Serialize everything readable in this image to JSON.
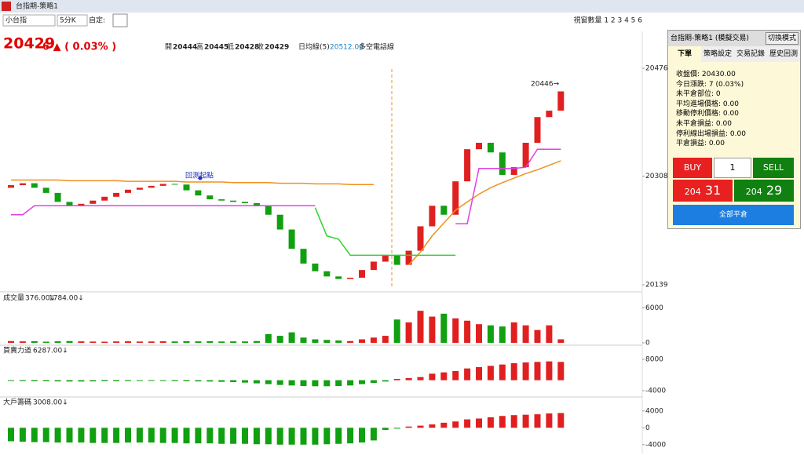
{
  "window": {
    "title": "台指期-策略1"
  },
  "toolbar": {
    "symbol": "小台指",
    "period": "5分K",
    "custom": "自定:",
    "view_count": "視窗數量 1 2 3 4 5 6"
  },
  "quote": {
    "price": "20429",
    "change": "6 ▲ ( 0.03% )",
    "open_label": "開",
    "open": 20444,
    "high_label": "高",
    "high": 20445,
    "low_label": "低",
    "low": 20428,
    "close_label": "收",
    "close": 20429,
    "ma_label": "日均線(5)",
    "ma_value": "20512.00",
    "line_label": "多空電話線"
  },
  "chart_data": {
    "type": "candlestick",
    "annotations": {
      "start": "回測起點",
      "last_high": "20446→"
    },
    "ylim": [
      20139,
      20476
    ],
    "yticks": [
      20139,
      20308,
      20476
    ],
    "open": [
      20290,
      20294,
      20297,
      20290,
      20282,
      20268,
      20262,
      20265,
      20270,
      20276,
      20282,
      20287,
      20290,
      20293,
      20296,
      20295,
      20286,
      20278,
      20272,
      20270,
      20268,
      20266,
      20262,
      20248,
      20225,
      20195,
      20172,
      20160,
      20152,
      20148,
      20150,
      20162,
      20175,
      20185,
      20170,
      20192,
      20230,
      20262,
      20248,
      20300,
      20350,
      20360,
      20345,
      20310,
      20322,
      20360,
      20400,
      20410
    ],
    "close": [
      20294,
      20297,
      20290,
      20282,
      20268,
      20262,
      20265,
      20270,
      20276,
      20282,
      20287,
      20290,
      20293,
      20296,
      20295,
      20286,
      20278,
      20272,
      20270,
      20268,
      20266,
      20262,
      20248,
      20225,
      20195,
      20172,
      20160,
      20152,
      20148,
      20150,
      20162,
      20175,
      20185,
      20170,
      20192,
      20230,
      20262,
      20248,
      20300,
      20350,
      20360,
      20345,
      20310,
      20322,
      20360,
      20400,
      20410,
      20440
    ],
    "series": [
      {
        "name": "ma",
        "color": "#f0901e",
        "values": [
          20302,
          20302,
          20302,
          20302,
          20302,
          20301,
          20301,
          20301,
          20301,
          20301,
          20300,
          20300,
          20300,
          20300,
          20300,
          20299,
          20299,
          20299,
          20299,
          20298,
          20298,
          20298,
          20298,
          20297,
          20297,
          20297,
          20296,
          20296,
          20296,
          20295,
          20295,
          20295,
          null,
          null,
          20170,
          20190,
          20215,
          20235,
          20255,
          20268,
          20280,
          20290,
          20298,
          20305,
          20312,
          20318,
          20325,
          20332
        ]
      },
      {
        "name": "stop",
        "color": "#e040e0",
        "values": [
          20248,
          20248,
          20262,
          20262,
          20262,
          20262,
          20262,
          20262,
          20262,
          20262,
          20262,
          20262,
          20262,
          20262,
          20262,
          20262,
          20262,
          20262,
          20262,
          20262,
          20262,
          20262,
          20262,
          20262,
          20262,
          20262,
          20262,
          null,
          null,
          null,
          null,
          null,
          null,
          null,
          null,
          null,
          null,
          null,
          20234,
          20234,
          20320,
          20320,
          20320,
          20320,
          20322,
          20350,
          20350,
          20350
        ]
      },
      {
        "name": "trail",
        "color": "#30d030",
        "values": [
          null,
          null,
          null,
          null,
          null,
          null,
          null,
          null,
          null,
          null,
          null,
          null,
          null,
          null,
          null,
          null,
          null,
          null,
          null,
          null,
          null,
          null,
          null,
          null,
          null,
          null,
          20259,
          20215,
          20210,
          20185,
          20185,
          20185,
          20185,
          20185,
          20185,
          20185,
          20185,
          20185,
          20185,
          null,
          null,
          null,
          null,
          null,
          null,
          null,
          null,
          null
        ]
      }
    ]
  },
  "volume": {
    "title": "成交量",
    "v1": "376.00↓",
    "v2": "1784.00↓",
    "ylim": [
      0,
      7000
    ],
    "yticks": [
      0,
      6000
    ],
    "values": [
      300,
      250,
      280,
      200,
      260,
      300,
      250,
      220,
      200,
      240,
      260,
      220,
      230,
      260,
      240,
      280,
      250,
      270,
      230,
      250,
      240,
      300,
      1500,
      1200,
      1800,
      900,
      600,
      500,
      400,
      300,
      600,
      900,
      1200,
      4000,
      3500,
      5500,
      4500,
      5000,
      4200,
      3800,
      3200,
      3000,
      2800,
      3500,
      3000,
      2200,
      3000,
      600
    ]
  },
  "force": {
    "title": "買賣力道",
    "v1": "6287.00↓",
    "ylim": [
      -5800,
      10400
    ],
    "yticks": [
      -4000,
      8000
    ],
    "values": [
      -300,
      -350,
      -400,
      -400,
      -450,
      -500,
      -500,
      -450,
      -400,
      -400,
      -350,
      -300,
      -300,
      -300,
      -350,
      -400,
      -450,
      -500,
      -600,
      -700,
      -900,
      -1200,
      -1500,
      -1800,
      -2000,
      -2200,
      -2300,
      -2300,
      -2200,
      -2000,
      -1500,
      -1000,
      -500,
      500,
      800,
      1200,
      2500,
      3000,
      3500,
      4500,
      5000,
      5500,
      6000,
      6500,
      6800,
      7000,
      7200,
      7000
    ]
  },
  "big": {
    "title": "大戶籌碼",
    "v1": "3008.00↓",
    "ylim": [
      -5900,
      6200
    ],
    "yticks": [
      -4000,
      0,
      4000
    ],
    "values": [
      -3200,
      -3300,
      -3400,
      -3400,
      -3500,
      -3500,
      -3500,
      -3600,
      -3600,
      -3600,
      -3500,
      -3500,
      -3500,
      -3600,
      -3600,
      -3700,
      -3700,
      -3700,
      -3800,
      -3800,
      -3800,
      -3900,
      -3900,
      -4000,
      -4000,
      -4000,
      -4000,
      -3900,
      -3800,
      -3700,
      -3500,
      -3000,
      -500,
      -200,
      300,
      500,
      800,
      1200,
      1500,
      2000,
      2200,
      2500,
      2800,
      3000,
      3100,
      3200,
      3400,
      3500
    ]
  },
  "panel": {
    "title": "台指期-策略1 (模擬交易)",
    "switch": "切換模式",
    "tabs": [
      "下單",
      "策略設定",
      "交易記錄",
      "歷史回測"
    ],
    "info": [
      "收盤價: 20430.00",
      "今日漲跌: 7 (0.03%)",
      "未平倉部位: 0",
      "平均進場價格: 0.00",
      "移動停利價格: 0.00",
      "未平倉損益: 0.00",
      "停利線出場損益: 0.00",
      "平倉損益: 0.00"
    ],
    "buy": "BUY",
    "qty": "1",
    "sell": "SELL",
    "bid_a": "204",
    "bid_b": "31",
    "ask_a": "204",
    "ask_b": "29",
    "close_all": "全部平倉"
  }
}
